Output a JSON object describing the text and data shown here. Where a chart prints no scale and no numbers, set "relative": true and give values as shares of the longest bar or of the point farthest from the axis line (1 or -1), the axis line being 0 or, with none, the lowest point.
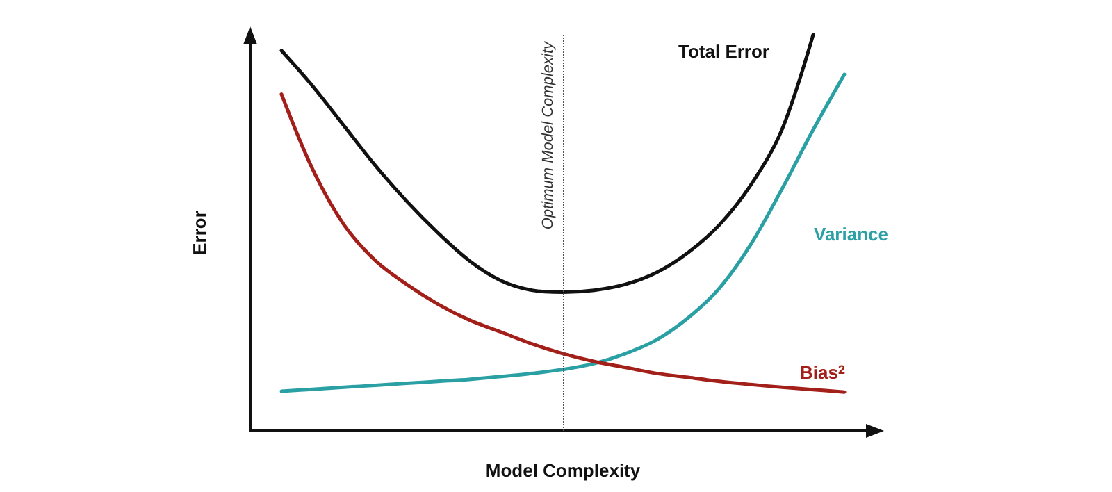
{
  "chart_data": {
    "type": "line",
    "relative": true,
    "xlabel": "Model Complexity",
    "ylabel": "Error",
    "categories": [
      null,
      null,
      null,
      null,
      null,
      null,
      null,
      null,
      null,
      null,
      null,
      null,
      null,
      null,
      null,
      null,
      null,
      null,
      null,
      null,
      null
    ],
    "series": [
      {
        "name": "Total Error",
        "color": "#111111",
        "values": [
          null,
          0.96,
          0.87,
          0.77,
          0.67,
          0.58,
          0.5,
          0.43,
          0.38,
          0.355,
          0.35,
          0.355,
          0.37,
          0.4,
          0.45,
          0.52,
          0.62,
          0.76,
          1.0,
          null,
          null
        ]
      },
      {
        "name": "Variance",
        "color": "#2aa0a4",
        "values": [
          null,
          0.1,
          0.105,
          0.11,
          0.115,
          0.12,
          0.125,
          0.13,
          0.137,
          0.145,
          0.155,
          0.17,
          0.195,
          0.23,
          0.285,
          0.36,
          0.47,
          0.61,
          0.76,
          0.9,
          null
        ]
      },
      {
        "name": "Bias$^{2}$",
        "color": "#a31f1a",
        "values": [
          null,
          0.85,
          0.66,
          0.52,
          0.43,
          0.37,
          0.32,
          0.28,
          0.25,
          0.22,
          0.195,
          0.175,
          0.16,
          0.145,
          0.135,
          0.125,
          0.117,
          0.11,
          0.104,
          0.098,
          null
        ]
      }
    ],
    "annotations": [
      "Optimum Model Complexity"
    ],
    "grid": false,
    "legend": false,
    "marker": "none",
    "line_style": "solid"
  }
}
